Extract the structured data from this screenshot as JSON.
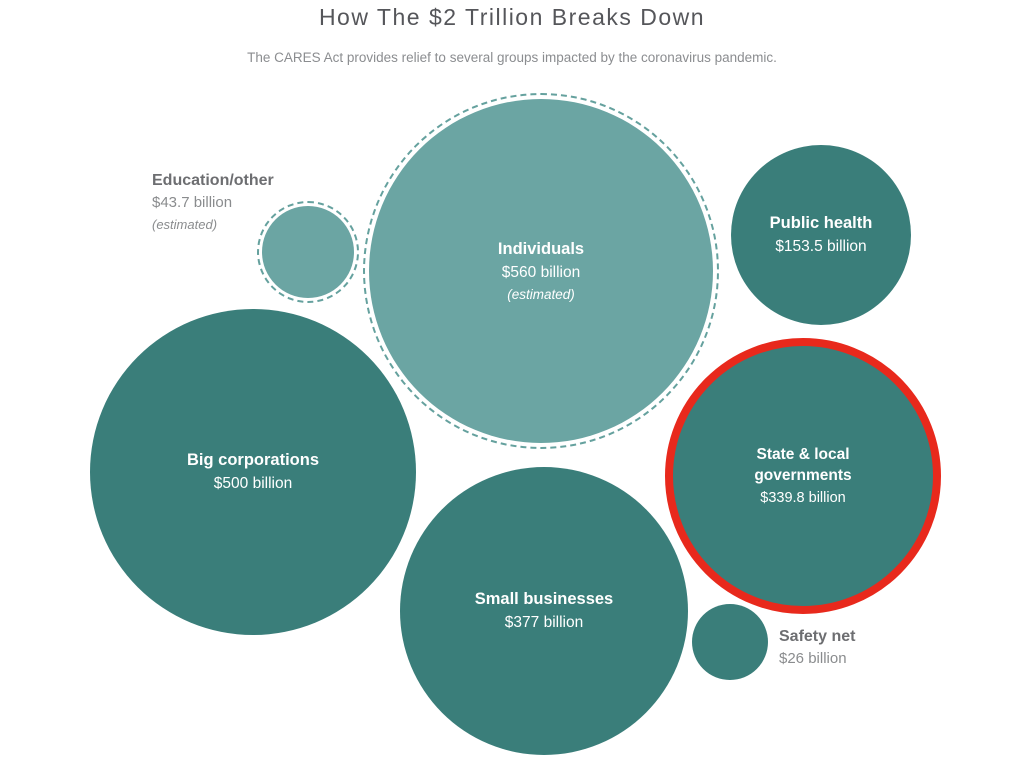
{
  "header": {
    "title": "How The $2 Trillion Breaks Down",
    "subtitle": "The CARES Act provides relief to several groups impacted by the coronavirus pandemic."
  },
  "colors": {
    "bubble_teal_dark": "#3a7e7a",
    "bubble_teal_light": "#6ba5a3",
    "dashed_ring_teal": "#65a19e",
    "highlight_ring_red": "#e8291c",
    "title_gray": "#55565a",
    "outside_label_gray_bold": "#6d6e71",
    "outside_label_gray": "#8a8c8e",
    "bubble_text_white": "#ffffff"
  },
  "chart_data": {
    "type": "bubble",
    "title": "How The $2 Trillion Breaks Down",
    "subtitle": "The CARES Act provides relief to several groups impacted by the coronavirus pandemic.",
    "unit": "USD billions",
    "total_depicted": "$2 trillion",
    "legend_position": "none",
    "bubbles": [
      {
        "label": "Individuals",
        "amount": "$560 billion",
        "value": 560,
        "note": "(estimated)",
        "estimated": true,
        "fill": "light-teal",
        "border": "dashed-teal",
        "label_placement": "inside",
        "highlighted": false
      },
      {
        "label": "Education/other",
        "amount": "$43.7 billion",
        "value": 43.7,
        "note": "(estimated)",
        "estimated": true,
        "fill": "light-teal",
        "border": "dashed-teal",
        "label_placement": "outside",
        "highlighted": false
      },
      {
        "label": "Public health",
        "amount": "$153.5 billion",
        "value": 153.5,
        "estimated": false,
        "fill": "dark-teal",
        "border": "none",
        "label_placement": "inside",
        "highlighted": false
      },
      {
        "label": "Big corporations",
        "amount": "$500 billion",
        "value": 500,
        "estimated": false,
        "fill": "dark-teal",
        "border": "none",
        "label_placement": "inside",
        "highlighted": false
      },
      {
        "label": "State & local governments",
        "amount": "$339.8 billion",
        "value": 339.8,
        "estimated": false,
        "fill": "dark-teal",
        "border": "red-highlight-ring",
        "label_placement": "inside",
        "highlighted": true
      },
      {
        "label": "Small businesses",
        "amount": "$377 billion",
        "value": 377,
        "estimated": false,
        "fill": "dark-teal",
        "border": "none",
        "label_placement": "inside",
        "highlighted": false
      },
      {
        "label": "Safety net",
        "amount": "$26 billion",
        "value": 26,
        "estimated": false,
        "fill": "dark-teal",
        "border": "none",
        "label_placement": "outside",
        "highlighted": false
      }
    ]
  }
}
